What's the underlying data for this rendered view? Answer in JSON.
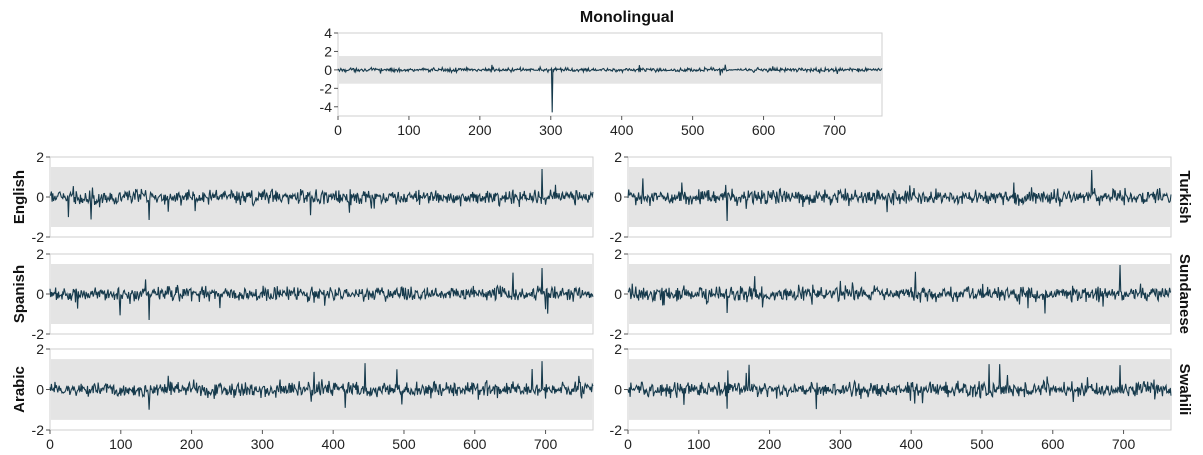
{
  "figure": {
    "title": "Monolingual"
  },
  "colors": {
    "line": "#163a4c",
    "band": "#e4e4e4",
    "frame": "#cfcfcf",
    "text": "#222222"
  },
  "chart_data": [
    {
      "id": "monolingual",
      "type": "line",
      "title": "Monolingual",
      "xlabel": "",
      "ylabel": "",
      "xlim": [
        0,
        767
      ],
      "ylim": [
        -5,
        4
      ],
      "xticks": [
        0,
        100,
        200,
        300,
        400,
        500,
        600,
        700
      ],
      "yticks": [
        4,
        2,
        0,
        -2,
        -4
      ],
      "band": [
        -1.5,
        1.5
      ],
      "noise_amplitude": 0.12,
      "spikes": [
        {
          "x": 302,
          "y": -4.6
        }
      ]
    },
    {
      "id": "english",
      "type": "line",
      "title": "English",
      "xlim": [
        0,
        767
      ],
      "ylim": [
        -2,
        2
      ],
      "xticks": [],
      "yticks": [
        2,
        0,
        -2
      ],
      "band": [
        -1.5,
        1.5
      ],
      "noise_amplitude": 0.22,
      "spikes": [
        {
          "x": 140,
          "y": -1.15
        },
        {
          "x": 695,
          "y": 1.4
        }
      ]
    },
    {
      "id": "spanish",
      "type": "line",
      "title": "Spanish",
      "xlim": [
        0,
        767
      ],
      "ylim": [
        -2,
        2
      ],
      "xticks": [],
      "yticks": [
        2,
        0,
        -2
      ],
      "band": [
        -1.5,
        1.5
      ],
      "noise_amplitude": 0.22,
      "spikes": [
        {
          "x": 140,
          "y": -1.3
        },
        {
          "x": 695,
          "y": 1.3
        }
      ]
    },
    {
      "id": "arabic",
      "type": "line",
      "title": "Arabic",
      "xlim": [
        0,
        767
      ],
      "ylim": [
        -2,
        2
      ],
      "xticks": [
        0,
        100,
        200,
        300,
        400,
        500,
        600,
        700
      ],
      "yticks": [
        2,
        0,
        -2
      ],
      "band": [
        -1.5,
        1.5
      ],
      "noise_amplitude": 0.22,
      "spikes": [
        {
          "x": 140,
          "y": -1.0
        },
        {
          "x": 445,
          "y": 1.3
        },
        {
          "x": 695,
          "y": 1.4
        }
      ]
    },
    {
      "id": "turkish",
      "type": "line",
      "title": "Turkish",
      "xlim": [
        0,
        767
      ],
      "ylim": [
        -2,
        2
      ],
      "xticks": [],
      "yticks": [
        2,
        0,
        -2
      ],
      "band": [
        -1.5,
        1.5
      ],
      "noise_amplitude": 0.22,
      "spikes": [
        {
          "x": 140,
          "y": -1.2
        },
        {
          "x": 655,
          "y": 1.35
        }
      ]
    },
    {
      "id": "sundanese",
      "type": "line",
      "title": "Sundanese",
      "xlim": [
        0,
        767
      ],
      "ylim": [
        -2,
        2
      ],
      "xticks": [],
      "yticks": [
        2,
        0,
        -2
      ],
      "band": [
        -1.5,
        1.5
      ],
      "noise_amplitude": 0.22,
      "spikes": [
        {
          "x": 140,
          "y": -0.95
        },
        {
          "x": 695,
          "y": 1.45
        }
      ]
    },
    {
      "id": "swahili",
      "type": "line",
      "title": "Swahili",
      "xlim": [
        0,
        767
      ],
      "ylim": [
        -2,
        2
      ],
      "xticks": [
        0,
        100,
        200,
        300,
        400,
        500,
        600,
        700
      ],
      "yticks": [
        2,
        0,
        -2
      ],
      "band": [
        -1.5,
        1.5
      ],
      "noise_amplitude": 0.22,
      "spikes": [
        {
          "x": 140,
          "y": -0.95
        },
        {
          "x": 510,
          "y": 1.25
        },
        {
          "x": 525,
          "y": 1.25
        },
        {
          "x": 695,
          "y": 1.2
        }
      ]
    }
  ]
}
